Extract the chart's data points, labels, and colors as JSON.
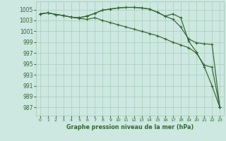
{
  "xlabel": "Graphe pression niveau de la mer (hPa)",
  "xlim": [
    -0.5,
    23.5
  ],
  "ylim": [
    985.5,
    1006.5
  ],
  "yticks": [
    987,
    989,
    991,
    993,
    995,
    997,
    999,
    1001,
    1003,
    1005
  ],
  "xticks": [
    0,
    1,
    2,
    3,
    4,
    5,
    6,
    7,
    8,
    9,
    10,
    11,
    12,
    13,
    14,
    15,
    16,
    17,
    18,
    19,
    20,
    21,
    22,
    23
  ],
  "bg_color": "#cce8e0",
  "grid_color": "#aaccbb",
  "line_color": "#336633",
  "series": [
    [
      1004.2,
      1004.4,
      1004.1,
      1003.9,
      1003.6,
      1003.5,
      1003.8,
      1004.3,
      1004.9,
      1005.1,
      1005.3,
      1005.4,
      1005.4,
      1005.3,
      1005.1,
      1004.5,
      1003.8,
      1004.2,
      1003.5,
      999.2,
      997.2,
      994.5,
      991.0,
      987.0
    ],
    [
      1004.2,
      1004.4,
      1004.1,
      1003.9,
      1003.6,
      1003.5,
      1003.8,
      1004.3,
      1004.9,
      1005.1,
      1005.3,
      1005.4,
      1005.4,
      1005.3,
      1005.1,
      1004.5,
      1003.8,
      1003.2,
      1001.8,
      999.6,
      998.9,
      998.7,
      998.6,
      987.0
    ],
    [
      1004.2,
      1004.4,
      1004.1,
      1003.9,
      1003.6,
      1003.4,
      1003.2,
      1003.5,
      1003.0,
      1002.6,
      1002.2,
      1001.8,
      1001.4,
      1001.0,
      1000.6,
      1000.2,
      999.6,
      999.0,
      998.5,
      998.0,
      997.0,
      994.8,
      994.4,
      987.0
    ]
  ]
}
